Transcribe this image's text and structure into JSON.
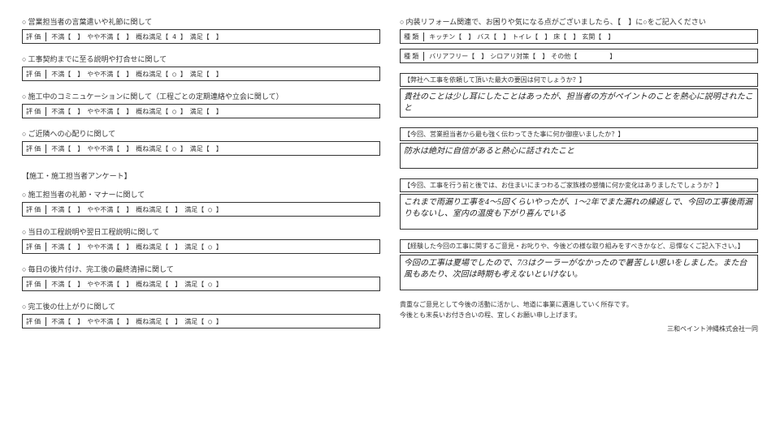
{
  "left": {
    "q1": {
      "title": "営業担当者の言葉遣いや礼節に関して",
      "mark": "4"
    },
    "q2": {
      "title": "工事契約までに至る説明や打合せに関して",
      "mark": "○"
    },
    "q3": {
      "title": "施工中のコミニュケーションに関して（工程ごとの定期連絡や立会に関して）",
      "mark": "○"
    },
    "q4": {
      "title": "ご近隣への心配りに関して",
      "mark": "○"
    },
    "section": "【施工・施工担当者アンケート】",
    "q5": {
      "title": "施工担当者の礼節・マナーに関して",
      "mark": "○"
    },
    "q6": {
      "title": "当日の工程説明や翌日工程説明に関して",
      "mark": "○"
    },
    "q7": {
      "title": "毎日の後片付け、完工後の最終清掃に関して",
      "mark": "○"
    },
    "q8": {
      "title": "完工後の仕上がりに関して",
      "mark": "○"
    }
  },
  "rating": {
    "label": "評 価",
    "opt1": "不満",
    "opt2": "やや不満",
    "opt3": "概ね満足",
    "opt4": "満足"
  },
  "right": {
    "reform_title": "内装リフォーム関連で、お困りや気になる点がございましたら、【　】に○をご記入ください",
    "type_label": "種 類",
    "types1": [
      "キッチン",
      "バス",
      "トイレ",
      "床",
      "玄関"
    ],
    "types2": [
      "バリアフリー",
      "シロアリ対策",
      "その他"
    ],
    "q1": {
      "title": "【弊社へ工事を依頼して頂いた最大の要因は何でしょうか？】",
      "answer": "貴社のことは少し耳にしたことはあったが、担当者の方がペイントのことを熱心に説明されたこと"
    },
    "q2": {
      "title": "【今回、営業担当者から最も強く伝わってきた事に何か御座いましたか？】",
      "answer": "防水は絶対に自信があると熱心に話されたこと"
    },
    "q3": {
      "title": "【今回、工事を行う前と後では、お住まいにまつわるご家族様の感情に何か変化はありましたでしょうか？】",
      "answer": "これまで雨漏り工事を4〜5回くらいやったが、1〜2年でまた漏れの繰返しで、今回の工事後雨漏りもないし、室内の温度も下がり喜んでいる"
    },
    "q4": {
      "title": "【経験した今回の工事に関するご意見・お叱りや、今後どの様な取り組みをすべきかなど、忌憚なくご記入下さい。】",
      "answer": "今回の工事は夏場でしたので、7/3はクーラーがなかったので暑苦しい思いをしました。また台風もあたり、次回は時期も考えないといけない。"
    },
    "footer1": "貴重なご意見として今後の活動に活かし、地道に事業に邁進していく所存です。",
    "footer2": "今後とも末長いお付き合いの程、宜しくお願い申し上げます。",
    "signature": "三和ペイント沖縄株式会社一同"
  }
}
